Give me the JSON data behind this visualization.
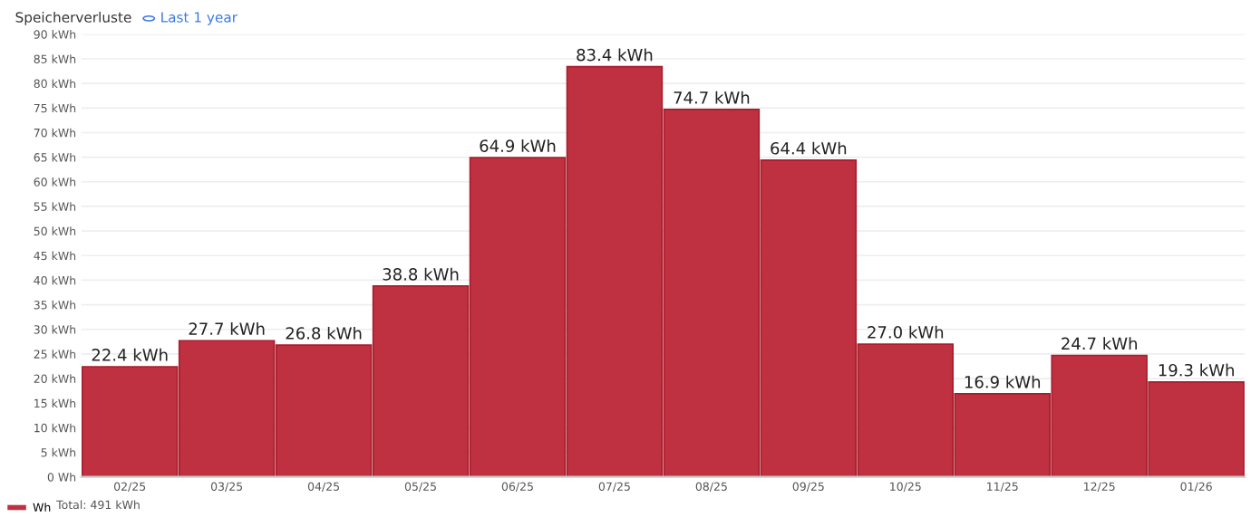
{
  "chart_data": {
    "type": "bar",
    "title": "Speicherverluste",
    "subtitle": "Last 1 year",
    "categories": [
      "02/25",
      "03/25",
      "04/25",
      "05/25",
      "06/25",
      "07/25",
      "08/25",
      "09/25",
      "10/25",
      "11/25",
      "12/25",
      "01/26"
    ],
    "series": [
      {
        "name": "Wh",
        "color": "#bf3141",
        "values": [
          22.4,
          27.7,
          26.8,
          38.8,
          64.9,
          83.4,
          74.7,
          64.4,
          27.0,
          16.9,
          24.7,
          19.3
        ],
        "value_labels": [
          "22.4 kWh",
          "27.7 kWh",
          "26.8 kWh",
          "38.8 kWh",
          "64.9 kWh",
          "83.4 kWh",
          "74.7 kWh",
          "64.4 kWh",
          "27.0 kWh",
          "16.9 kWh",
          "24.7 kWh",
          "19.3 kWh"
        ]
      }
    ],
    "annotations": [
      "Total: 491 kWh"
    ],
    "ylim": [
      0,
      90
    ],
    "yticks": [
      {
        "value": 0,
        "label": "0 Wh"
      },
      {
        "value": 5,
        "label": "5 kWh"
      },
      {
        "value": 10,
        "label": "10 kWh"
      },
      {
        "value": 15,
        "label": "15 kWh"
      },
      {
        "value": 20,
        "label": "20 kWh"
      },
      {
        "value": 25,
        "label": "25 kWh"
      },
      {
        "value": 30,
        "label": "30 kWh"
      },
      {
        "value": 35,
        "label": "35 kWh"
      },
      {
        "value": 40,
        "label": "40 kWh"
      },
      {
        "value": 45,
        "label": "45 kWh"
      },
      {
        "value": 50,
        "label": "50 kWh"
      },
      {
        "value": 55,
        "label": "55 kWh"
      },
      {
        "value": 60,
        "label": "60 kWh"
      },
      {
        "value": 65,
        "label": "65 kWh"
      },
      {
        "value": 70,
        "label": "70 kWh"
      },
      {
        "value": 75,
        "label": "75 kWh"
      },
      {
        "value": 80,
        "label": "80 kWh"
      },
      {
        "value": 85,
        "label": "85 kWh"
      },
      {
        "value": 90,
        "label": "90 kWh"
      }
    ],
    "grid": "y",
    "legend": "bottom left"
  }
}
